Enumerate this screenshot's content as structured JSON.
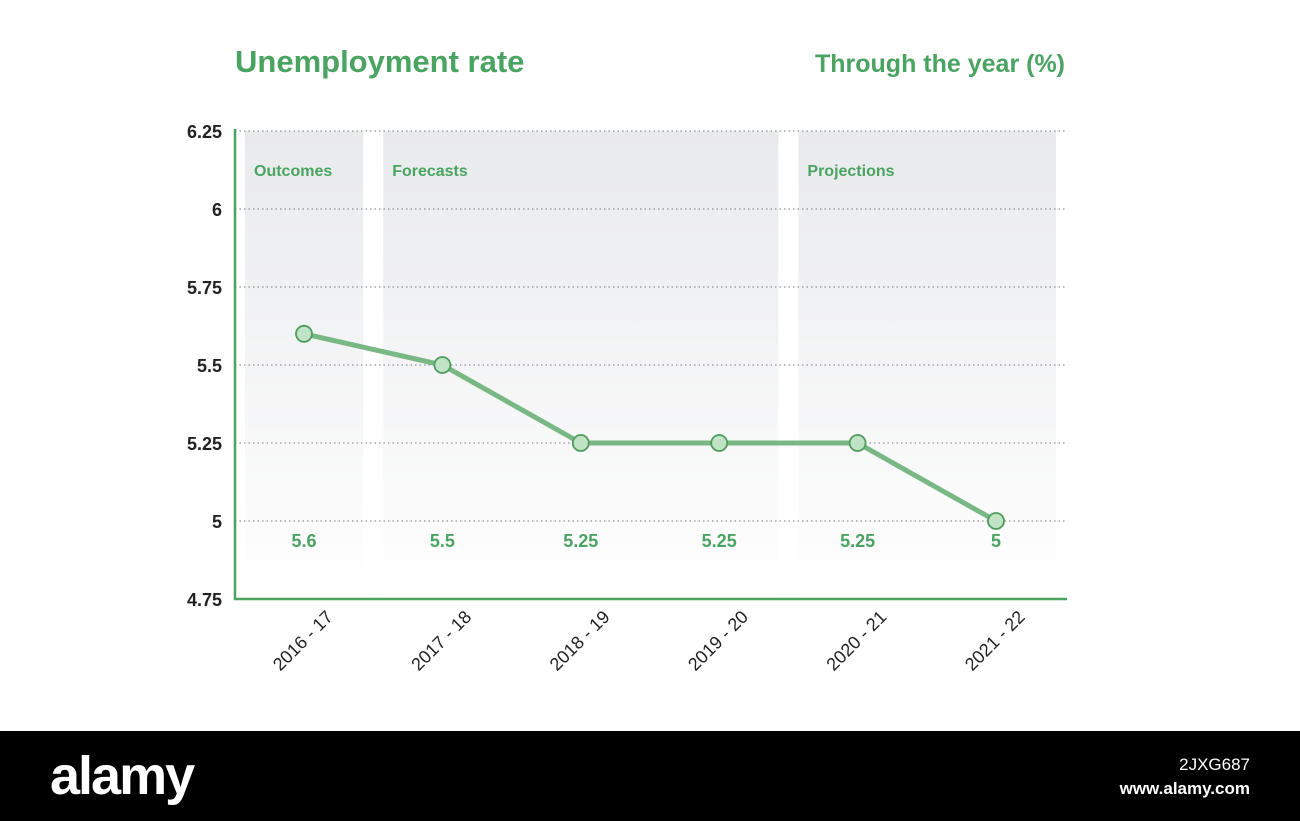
{
  "chart_data": {
    "type": "line",
    "title": "Unemployment rate",
    "subtitle": "Through the year (%)",
    "xlabel": "",
    "ylabel": "",
    "categories": [
      "2016 - 17",
      "2017 - 18",
      "2018 - 19",
      "2019 - 20",
      "2020 - 21",
      "2021 - 22"
    ],
    "series": [
      {
        "values": [
          5.6,
          5.5,
          5.25,
          5.25,
          5.25,
          5
        ]
      }
    ],
    "data_labels": [
      "5.6",
      "5.5",
      "5.25",
      "5.25",
      "5.25",
      "5"
    ],
    "ylim": [
      4.75,
      6.25
    ],
    "y_ticks": [
      6.25,
      6,
      5.75,
      5.5,
      5.25,
      5,
      4.75
    ],
    "y_tick_labels": [
      "6.25",
      "6",
      "5.75",
      "5.5",
      "5.25",
      "5",
      "4.75"
    ],
    "grid": true,
    "grid_style": "dotted",
    "regions": [
      {
        "label": "Outcomes",
        "from_category": "2016 - 17",
        "to_category": "2016 - 17"
      },
      {
        "label": "Forecasts",
        "from_category": "2017 - 18",
        "to_category": "2019 - 20"
      },
      {
        "label": "Projections",
        "from_category": "2020 - 21",
        "to_category": "2021 - 22"
      }
    ],
    "colors": {
      "accent": "#4aa461",
      "line": "#79b784",
      "marker_fill": "#bfe3c4",
      "marker_stroke": "#4f9c5d",
      "region_fill_top": "#e9eaec",
      "region_fill_bottom": "#ffffff",
      "tick_text": "#222222",
      "grid": "#777777"
    }
  },
  "footer": {
    "logo": "alamy",
    "image_id": "2JXG687",
    "url": "www.alamy.com"
  }
}
